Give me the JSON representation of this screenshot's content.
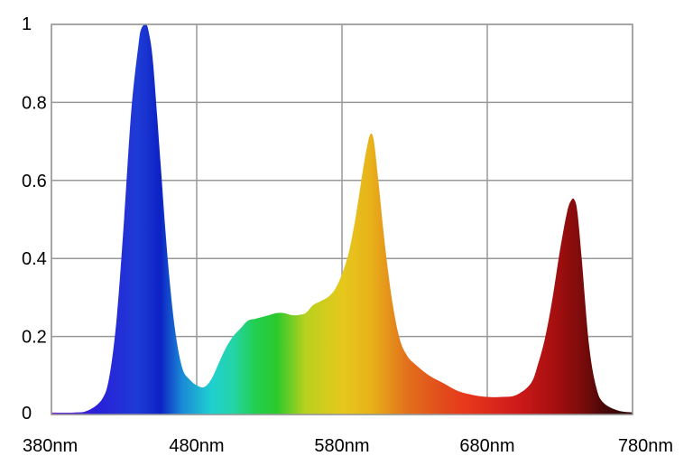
{
  "chart_data": {
    "type": "area",
    "title": "",
    "xlabel": "",
    "ylabel": "",
    "xlim": [
      380,
      780
    ],
    "ylim": [
      0,
      1
    ],
    "grid": true,
    "x_ticks": [
      {
        "value": 380,
        "label": "380nm"
      },
      {
        "value": 480,
        "label": "480nm"
      },
      {
        "value": 580,
        "label": "580nm"
      },
      {
        "value": 680,
        "label": "680nm"
      },
      {
        "value": 780,
        "label": "780nm"
      }
    ],
    "y_ticks": [
      {
        "value": 0,
        "label": "0"
      },
      {
        "value": 0.2,
        "label": "0.2"
      },
      {
        "value": 0.4,
        "label": "0.4"
      },
      {
        "value": 0.6,
        "label": "0.6"
      },
      {
        "value": 0.8,
        "label": "0.8"
      },
      {
        "value": 1,
        "label": "1"
      }
    ],
    "series": [
      {
        "x": [
          380,
          395,
          405,
          415,
          420,
          425,
          430,
          435,
          440,
          442,
          445,
          447,
          450,
          455,
          460,
          465,
          470,
          475,
          480,
          485,
          490,
          495,
          500,
          505,
          510,
          515,
          520,
          525,
          530,
          535,
          540,
          545,
          550,
          555,
          560,
          565,
          570,
          575,
          580,
          585,
          590,
          595,
          598,
          600,
          602,
          605,
          610,
          615,
          620,
          625,
          630,
          640,
          650,
          660,
          670,
          680,
          690,
          700,
          710,
          715,
          720,
          725,
          730,
          735,
          738,
          740,
          742,
          745,
          750,
          755,
          760,
          770,
          780
        ],
        "values": [
          0.005,
          0.005,
          0.01,
          0.04,
          0.1,
          0.25,
          0.5,
          0.78,
          0.95,
          0.99,
          1.0,
          0.98,
          0.9,
          0.65,
          0.4,
          0.22,
          0.12,
          0.09,
          0.075,
          0.07,
          0.09,
          0.13,
          0.17,
          0.2,
          0.22,
          0.24,
          0.245,
          0.25,
          0.255,
          0.26,
          0.26,
          0.255,
          0.255,
          0.26,
          0.28,
          0.29,
          0.3,
          0.32,
          0.36,
          0.42,
          0.52,
          0.64,
          0.7,
          0.72,
          0.7,
          0.6,
          0.42,
          0.28,
          0.19,
          0.15,
          0.13,
          0.1,
          0.08,
          0.06,
          0.05,
          0.045,
          0.045,
          0.05,
          0.08,
          0.13,
          0.2,
          0.3,
          0.42,
          0.52,
          0.55,
          0.55,
          0.52,
          0.4,
          0.18,
          0.07,
          0.03,
          0.01,
          0.005
        ]
      }
    ],
    "colors": {
      "gradient": [
        {
          "x": 380,
          "color": "#7a2ec7"
        },
        {
          "x": 410,
          "color": "#2a1fd8"
        },
        {
          "x": 440,
          "color": "#1e3bd6"
        },
        {
          "x": 455,
          "color": "#0c22c4"
        },
        {
          "x": 470,
          "color": "#1a8ad6"
        },
        {
          "x": 490,
          "color": "#1fd0d0"
        },
        {
          "x": 505,
          "color": "#24d4a8"
        },
        {
          "x": 520,
          "color": "#22cf52"
        },
        {
          "x": 535,
          "color": "#2bc92b"
        },
        {
          "x": 555,
          "color": "#b8d11f"
        },
        {
          "x": 580,
          "color": "#e6c81c"
        },
        {
          "x": 600,
          "color": "#e8b21a"
        },
        {
          "x": 625,
          "color": "#e2701c"
        },
        {
          "x": 650,
          "color": "#e24a1c"
        },
        {
          "x": 665,
          "color": "#e8381c"
        },
        {
          "x": 700,
          "color": "#cf1a1a"
        },
        {
          "x": 725,
          "color": "#a80f0f"
        },
        {
          "x": 745,
          "color": "#7c0b0b"
        },
        {
          "x": 760,
          "color": "#4a0808"
        },
        {
          "x": 780,
          "color": "#2a0606"
        }
      ],
      "grid": "#999999",
      "axis": "#999999"
    }
  }
}
